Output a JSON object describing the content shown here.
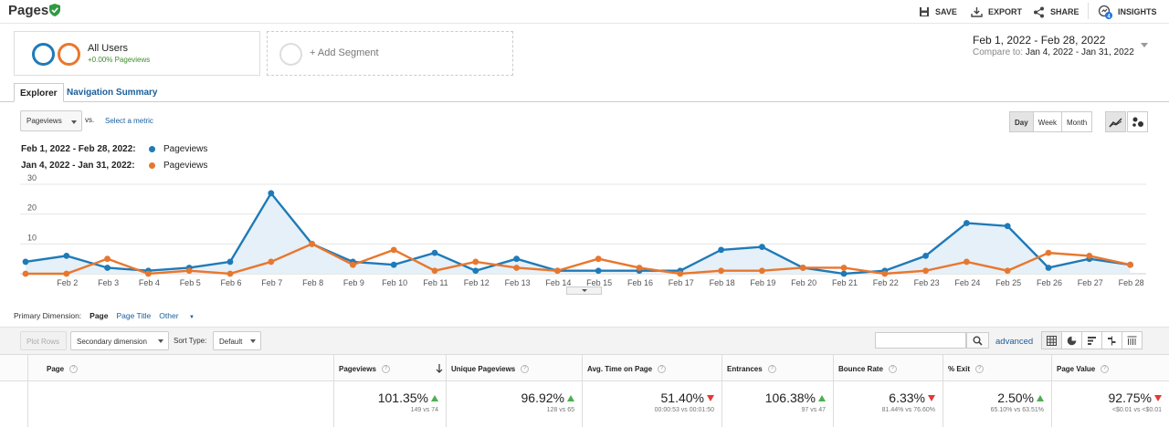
{
  "header": {
    "title": "Pages",
    "save_label": "SAVE",
    "export_label": "EXPORT",
    "share_label": "SHARE",
    "insights_label": "INSIGHTS",
    "insights_badge": "4"
  },
  "segments": {
    "active_name": "All Users",
    "active_sub": "+0.00% Pageviews",
    "add_label": "+ Add Segment"
  },
  "date_range": {
    "main": "Feb 1, 2022 - Feb 28, 2022",
    "compare_prefix": "Compare to:",
    "compare_range": "Jan 4, 2022 - Jan 31, 2022"
  },
  "tabs": [
    "Explorer",
    "Navigation Summary"
  ],
  "chart_controls": {
    "metric": "Pageviews",
    "vs": "vs.",
    "select_metric": "Select a metric",
    "granularity": [
      "Day",
      "Week",
      "Month"
    ],
    "active_granularity": "Day"
  },
  "legend": [
    {
      "range": "Feb 1, 2022 - Feb 28, 2022:",
      "metric": "Pageviews",
      "color": "#1f7ab8"
    },
    {
      "range": "Jan 4, 2022 - Jan 31, 2022:",
      "metric": "Pageviews",
      "color": "#e8772e"
    }
  ],
  "chart_data": {
    "type": "line",
    "categories": [
      "Feb 1",
      "Feb 2",
      "Feb 3",
      "Feb 4",
      "Feb 5",
      "Feb 6",
      "Feb 7",
      "Feb 8",
      "Feb 9",
      "Feb 10",
      "Feb 11",
      "Feb 12",
      "Feb 13",
      "Feb 14",
      "Feb 15",
      "Feb 16",
      "Feb 17",
      "Feb 18",
      "Feb 19",
      "Feb 20",
      "Feb 21",
      "Feb 22",
      "Feb 23",
      "Feb 24",
      "Feb 25",
      "Feb 26",
      "Feb 27",
      "Feb 28"
    ],
    "x_tick_labels": [
      "Feb 2",
      "Feb 3",
      "Feb 4",
      "Feb 5",
      "Feb 6",
      "Feb 7",
      "Feb 8",
      "Feb 9",
      "Feb 10",
      "Feb 11",
      "Feb 12",
      "Feb 13",
      "Feb 14",
      "Feb 15",
      "Feb 16",
      "Feb 17",
      "Feb 18",
      "Feb 19",
      "Feb 20",
      "Feb 21",
      "Feb 22",
      "Feb 23",
      "Feb 24",
      "Feb 25",
      "Feb 26",
      "Feb 27",
      "Feb 28"
    ],
    "y_ticks": [
      10,
      20,
      30
    ],
    "ylim": [
      0,
      30
    ],
    "grid": true,
    "series": [
      {
        "name": "Pageviews",
        "range": "Feb 1, 2022 - Feb 28, 2022",
        "color": "#1f7ab8",
        "filled": true,
        "values": [
          4,
          6,
          2,
          1,
          2,
          4,
          27,
          10,
          4,
          3,
          7,
          1,
          5,
          1,
          1,
          1,
          1,
          8,
          9,
          2,
          0,
          1,
          6,
          17,
          16,
          2,
          5,
          3
        ]
      },
      {
        "name": "Pageviews",
        "range": "Jan 4, 2022 - Jan 31, 2022",
        "color": "#e8772e",
        "filled": false,
        "values": [
          0,
          0,
          5,
          0,
          1,
          0,
          4,
          10,
          3,
          8,
          1,
          4,
          2,
          1,
          5,
          2,
          0,
          1,
          1,
          2,
          2,
          0,
          1,
          4,
          1,
          7,
          6,
          3
        ]
      }
    ]
  },
  "primary_dimension": {
    "label": "Primary Dimension:",
    "current": "Page",
    "alt": "Page Title",
    "other": "Other"
  },
  "table_toolbar": {
    "plot_rows": "Plot Rows",
    "secondary_dimension": "Secondary dimension",
    "sort_type_label": "Sort Type:",
    "sort_type_value": "Default",
    "advanced": "advanced"
  },
  "table": {
    "columns": [
      "Page",
      "Pageviews",
      "Unique Pageviews",
      "Avg. Time on Page",
      "Entrances",
      "Bounce Rate",
      "% Exit",
      "Page Value"
    ],
    "totals": [
      {
        "pct": "101.35%",
        "sub": "149 vs 74",
        "direction": "up"
      },
      {
        "pct": "96.92%",
        "sub": "128 vs 65",
        "direction": "up"
      },
      {
        "pct": "51.40%",
        "sub": "00:00:53 vs 00:01:50",
        "direction": "down"
      },
      {
        "pct": "106.38%",
        "sub": "97 vs 47",
        "direction": "up"
      },
      {
        "pct": "6.33%",
        "sub": "81.44% vs 76.60%",
        "direction": "down"
      },
      {
        "pct": "2.50%",
        "sub": "65.10% vs 63.51%",
        "direction": "up"
      },
      {
        "pct": "92.75%",
        "sub": "<$0.01 vs <$0.01",
        "direction": "down"
      }
    ]
  }
}
